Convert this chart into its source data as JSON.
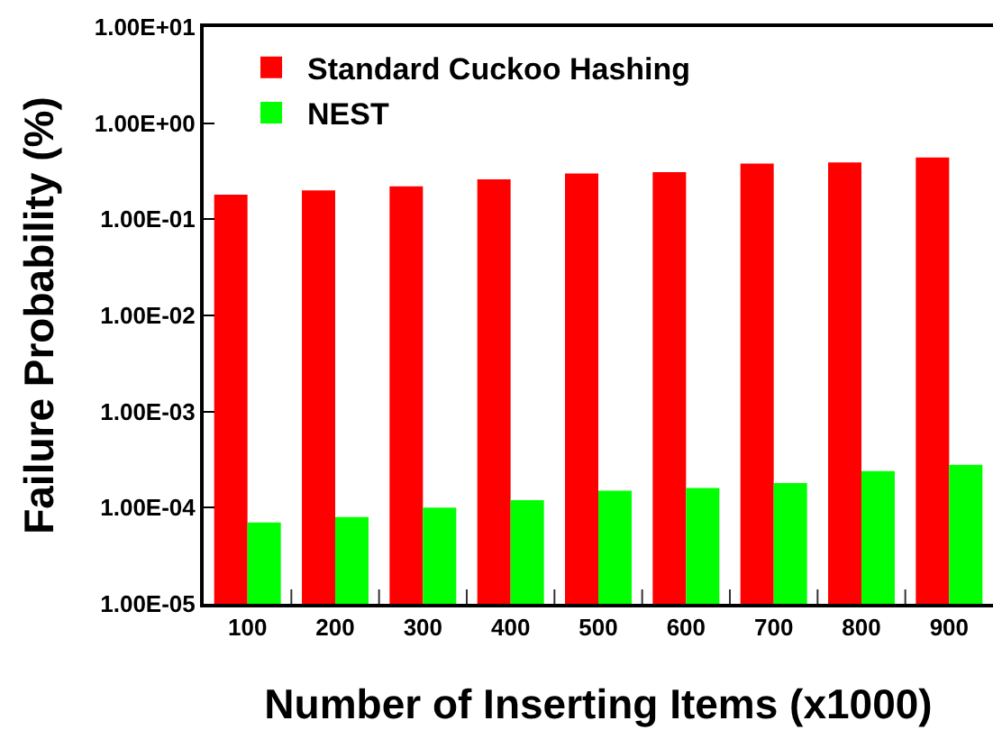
{
  "chart_data": {
    "type": "bar",
    "xlabel": "Number of Inserting Items (x1000)",
    "ylabel": "Failure Probability (%)",
    "categories": [
      "100",
      "200",
      "300",
      "400",
      "500",
      "600",
      "700",
      "800",
      "900"
    ],
    "series": [
      {
        "name": "Standard Cuckoo Hashing",
        "color": "#ff0000",
        "values": [
          0.18,
          0.2,
          0.22,
          0.26,
          0.3,
          0.31,
          0.38,
          0.39,
          0.44
        ]
      },
      {
        "name": "NEST",
        "color": "#00ff00",
        "values": [
          7e-05,
          8e-05,
          0.0001,
          0.00012,
          0.00015,
          0.00016,
          0.00018,
          0.00024,
          0.00028
        ]
      }
    ],
    "log": "y",
    "ylim": [
      1e-05,
      10
    ],
    "yticks": [
      {
        "value": 1e-05,
        "label": "1.00E-05"
      },
      {
        "value": 0.0001,
        "label": "1.00E-04"
      },
      {
        "value": 0.001,
        "label": "1.00E-03"
      },
      {
        "value": 0.01,
        "label": "1.00E-02"
      },
      {
        "value": 0.1,
        "label": "1.00E-01"
      },
      {
        "value": 1,
        "label": "1.00E+00"
      },
      {
        "value": 10,
        "label": "1.00E+01"
      }
    ],
    "legend": "top left"
  }
}
